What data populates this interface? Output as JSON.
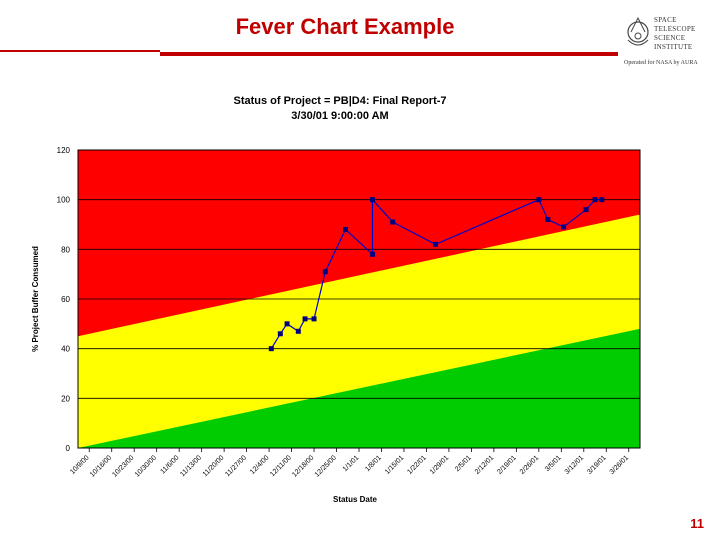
{
  "slide": {
    "title": "Fever Chart Example",
    "page_number": "11"
  },
  "logo": {
    "lines": [
      "SPACE",
      "TELESCOPE",
      "SCIENCE",
      "INSTITUTE"
    ],
    "operated": "Operated for NASA by AURA"
  },
  "colors": {
    "title_red": "#c00000",
    "zone_red": "#ff0000",
    "zone_yellow": "#ffff00",
    "zone_green": "#00cc00",
    "series_line": "#0000cc",
    "series_marker": "#000080"
  },
  "chart_data": {
    "type": "line",
    "title": "Status of Project = PB|D4: Final Report-7",
    "subtitle": "3/30/01 9:00:00 AM",
    "xlabel": "Status Date",
    "ylabel": "% Project Buffer Consumed",
    "ylim": [
      0,
      120
    ],
    "yticks": [
      0,
      20,
      40,
      60,
      80,
      100,
      120
    ],
    "grid": true,
    "x_tick_labels": [
      "10/9/00",
      "10/16/00",
      "10/23/00",
      "10/30/00",
      "11/6/00",
      "11/13/00",
      "11/20/00",
      "11/27/00",
      "12/4/00",
      "12/11/00",
      "12/18/00",
      "12/25/00",
      "1/1/01",
      "1/8/01",
      "1/15/01",
      "1/22/01",
      "1/29/01",
      "2/5/01",
      "2/12/01",
      "2/19/01",
      "2/26/01",
      "3/5/01",
      "3/12/01",
      "3/19/01",
      "3/26/01"
    ],
    "x_range": [
      0,
      25
    ],
    "zones": [
      {
        "name": "green",
        "boundary_start": 0,
        "boundary_end": 48
      },
      {
        "name": "yellow",
        "boundary_start": 45,
        "boundary_end": 94
      },
      {
        "name": "red",
        "boundary_top": 120
      }
    ],
    "series": [
      {
        "name": "Project Buffer Consumed",
        "x": [
          8.6,
          9.0,
          9.3,
          9.8,
          10.1,
          10.5,
          11.0,
          11.9,
          13.1,
          13.1,
          14.0,
          15.9,
          20.5,
          20.9,
          21.6,
          22.6,
          23.0,
          23.3
        ],
        "y": [
          40,
          46,
          50,
          47,
          52,
          52,
          71,
          88,
          78,
          100,
          91,
          82,
          100,
          92,
          89,
          96,
          100,
          100
        ]
      }
    ]
  }
}
